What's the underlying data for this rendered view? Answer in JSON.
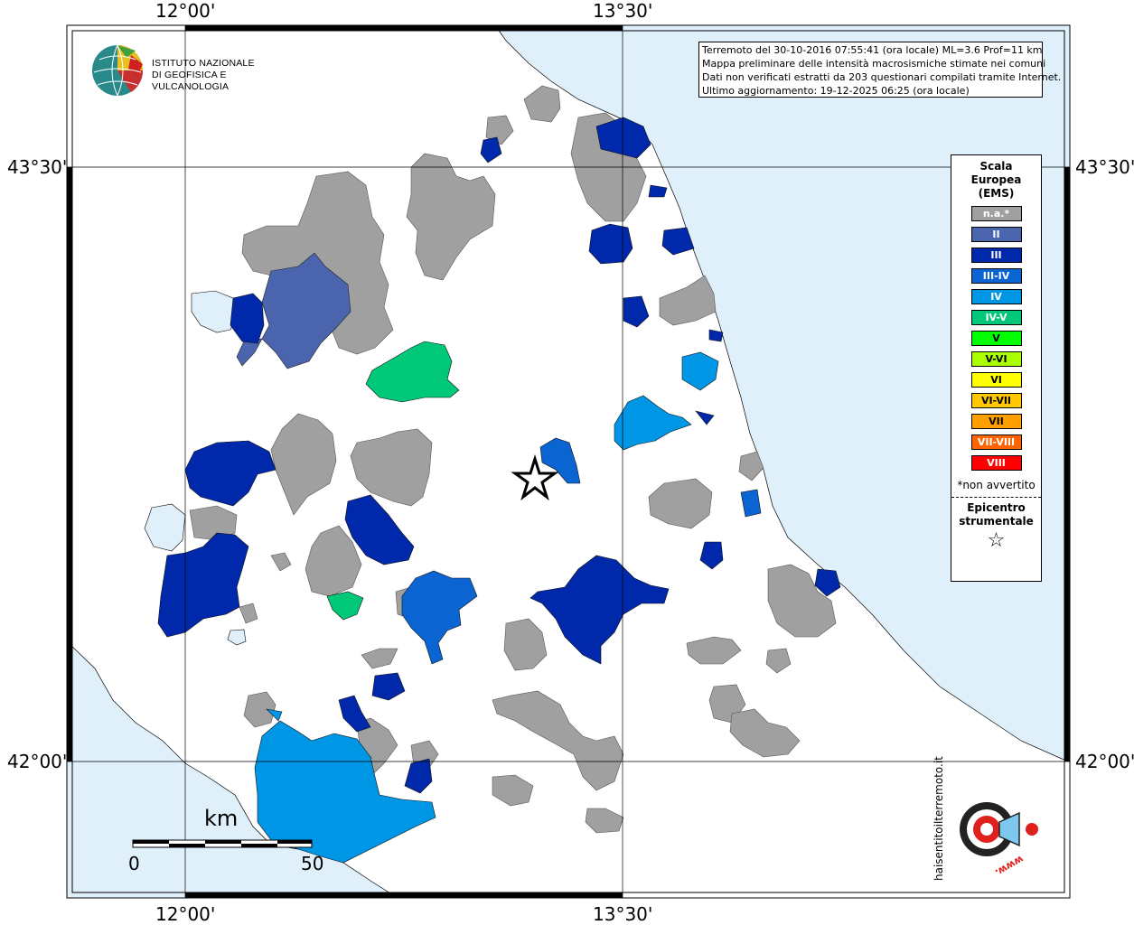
{
  "map": {
    "coordinates": {
      "top_left": "12°00'",
      "top_right": "13°30'",
      "bottom_left": "12°00'",
      "bottom_right": "13°30'",
      "left_top": "43°30'",
      "left_bottom": "42°00'",
      "right_top": "43°30'",
      "right_bottom": "42°00'"
    },
    "colors": {
      "sea": "#dff0fb",
      "land": "#ffffff",
      "na": "#a0a0a0",
      "II": "#4a64ad",
      "III": "#0028aa",
      "III_IV": "#0a64d2",
      "IV": "#0096e6",
      "IV_V": "#00c878"
    }
  },
  "title": {
    "line1": "Terremoto del 30-10-2016 07:55:41 (ora locale) ML=3.6 Prof=11 km",
    "line2": "Mappa preliminare delle intensità macrosismiche stimate nei comuni",
    "line3": "Dati non verificati estratti da 203 questionari compilati tramite Internet.",
    "line4": "Ultimo aggiornamento: 19-12-2025 06:25 (ora locale)"
  },
  "logo": {
    "line1": "ISTITUTO NAZIONALE",
    "line2": "DI GEOFISICA E VULCANOLOGIA"
  },
  "legend": {
    "title1": "Scala",
    "title2": "Europea",
    "title3": "(EMS)",
    "items": [
      {
        "label": "n.a.*",
        "color": "#a0a0a0"
      },
      {
        "label": "II",
        "color": "#4a64ad"
      },
      {
        "label": "III",
        "color": "#0028aa"
      },
      {
        "label": "III-IV",
        "color": "#0a64d2"
      },
      {
        "label": "IV",
        "color": "#0096e6"
      },
      {
        "label": "IV-V",
        "color": "#00c878"
      },
      {
        "label": "V",
        "color": "#00ff00"
      },
      {
        "label": "V-VI",
        "color": "#aaff00"
      },
      {
        "label": "VI",
        "color": "#ffff00"
      },
      {
        "label": "VI-VII",
        "color": "#ffc800"
      },
      {
        "label": "VII",
        "color": "#ffa000"
      },
      {
        "label": "VII-VIII",
        "color": "#ff6400"
      },
      {
        "label": "VIII",
        "color": "#ff0000"
      }
    ],
    "note": "*non avvertito",
    "epicenter1": "Epicentro",
    "epicenter2": "strumentale"
  },
  "scalebar": {
    "unit": "km",
    "min": "0",
    "max": "50"
  },
  "brand": {
    "name": "haisentitoilterremoto.it",
    "www": "www."
  }
}
